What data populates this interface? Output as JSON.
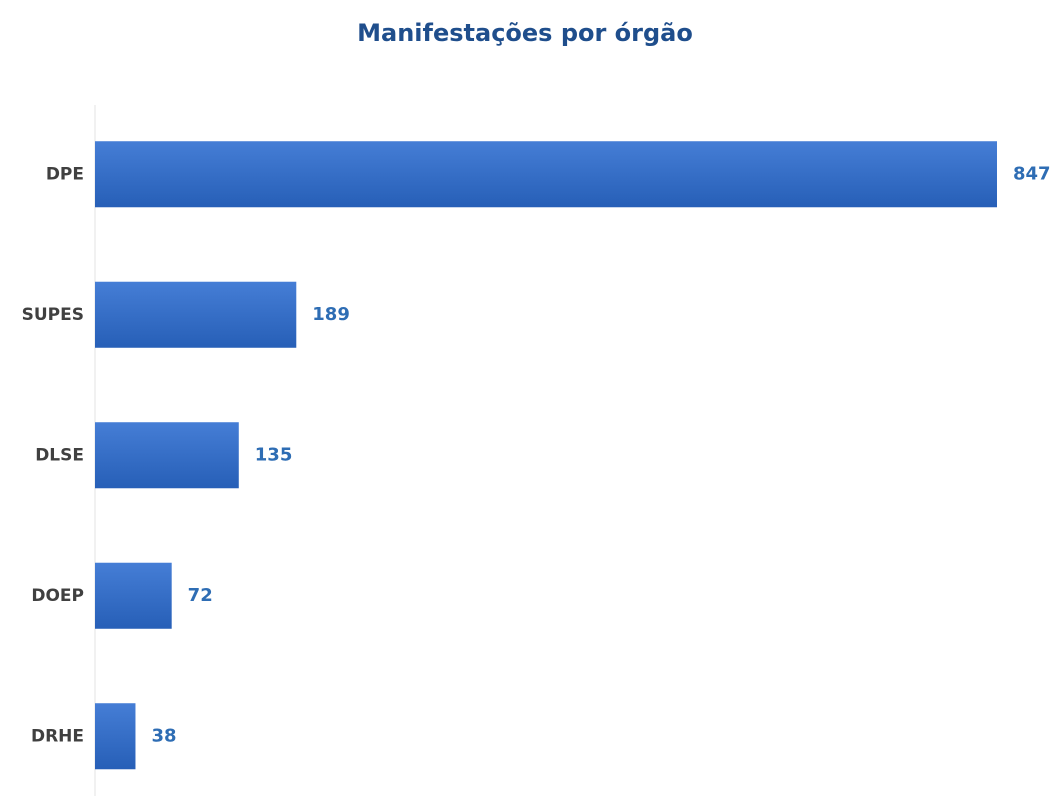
{
  "chart_data": {
    "type": "bar",
    "orientation": "horizontal",
    "title": "Manifestações por órgão",
    "categories": [
      "DPE",
      "SUPES",
      "DLSE",
      "DOEP",
      "DRHE"
    ],
    "values": [
      847,
      189,
      135,
      72,
      38
    ],
    "color": "#2c6cd0"
  }
}
